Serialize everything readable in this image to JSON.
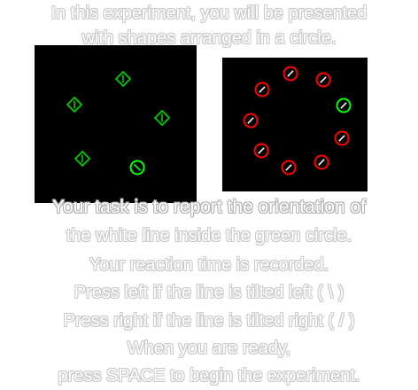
{
  "instructions": {
    "line_1": "In this experiment, you will be presented",
    "line_2": "with shapes arranged in a circle.",
    "line_3": "Your task is to report the orientation of",
    "line_4": "the white line inside the green circle.",
    "line_5": "Your reaction time is recorded.",
    "line_6": "Press left if the line is tilted left ( \\ )",
    "line_7": "Press right if the line is tilted right ( / )",
    "line_8": "When you are ready,",
    "line_9": "press SPACE to begin the experiment."
  },
  "colors": {
    "background": "#000000",
    "distractor": "#ff0000",
    "target": "#00ff00",
    "line": "#ffffff",
    "example_shapes": "#00cc00"
  },
  "left_example": {
    "shapes": [
      {
        "kind": "diamond",
        "line": "vertical"
      },
      {
        "kind": "diamond",
        "line": "vertical"
      },
      {
        "kind": "diamond",
        "line": "vertical"
      },
      {
        "kind": "diamond",
        "line": "vertical"
      },
      {
        "kind": "circle",
        "line": "left"
      }
    ]
  },
  "right_example": {
    "shapes": [
      {
        "kind": "circle",
        "color": "red",
        "line": "right"
      },
      {
        "kind": "circle",
        "color": "red",
        "line": "right"
      },
      {
        "kind": "circle",
        "color": "red",
        "line": "right"
      },
      {
        "kind": "circle",
        "color": "green",
        "line": "right"
      },
      {
        "kind": "circle",
        "color": "red",
        "line": "right"
      },
      {
        "kind": "circle",
        "color": "red",
        "line": "right"
      },
      {
        "kind": "circle",
        "color": "red",
        "line": "right"
      },
      {
        "kind": "circle",
        "color": "red",
        "line": "right"
      },
      {
        "kind": "circle",
        "color": "red",
        "line": "right"
      }
    ]
  }
}
